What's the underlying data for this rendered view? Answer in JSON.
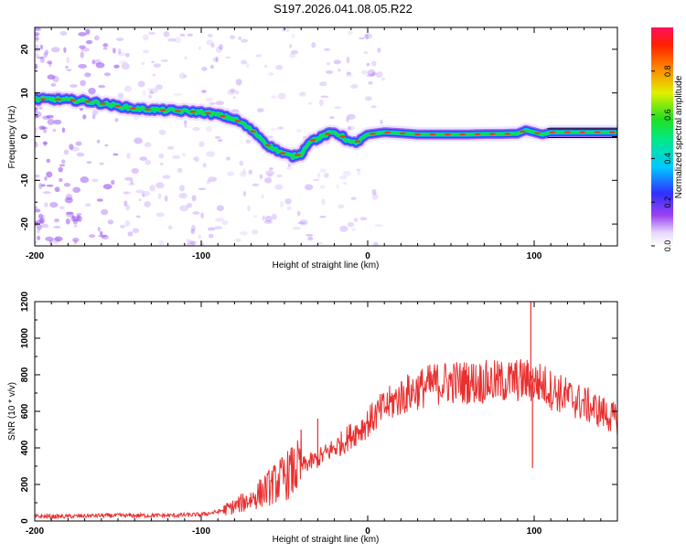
{
  "title": "S197.2026.041.08.05.R22",
  "colors": {
    "snr_line": "#e83030",
    "ridge_core": "#ff2a10",
    "ridge_mid": "#10e040",
    "ridge_outer": "#2040ff",
    "scatter": "#8a3cf0",
    "tail_line": "#000000"
  },
  "chart_data": [
    {
      "type": "heatmap",
      "name": "spectrogram",
      "xlabel": "Height of straight line (km)",
      "ylabel": "Frequency (Hz)",
      "xlim": [
        -200,
        150
      ],
      "ylim": [
        -25,
        25
      ],
      "xticks": [
        -200,
        -100,
        0,
        100
      ],
      "yticks": [
        -20,
        -10,
        0,
        10,
        20
      ],
      "ridge": {
        "x": [
          -200,
          -190,
          -180,
          -170,
          -160,
          -150,
          -140,
          -130,
          -120,
          -110,
          -100,
          -90,
          -80,
          -75,
          -70,
          -65,
          -60,
          -55,
          -50,
          -45,
          -40,
          -35,
          -30,
          -25,
          -20,
          -15,
          -10,
          -5,
          0,
          10,
          20,
          30,
          40,
          50,
          60,
          70,
          80,
          90,
          95,
          100,
          105,
          110,
          120,
          130,
          140,
          150
        ],
        "freq": [
          8.5,
          8.6,
          8.4,
          8.2,
          7.6,
          7.0,
          6.4,
          6.2,
          6.0,
          5.8,
          5.6,
          5.0,
          4.0,
          3.0,
          1.5,
          0.0,
          -2.0,
          -3.0,
          -4.0,
          -4.5,
          -4.0,
          -1.0,
          -0.5,
          0.5,
          1.0,
          0.0,
          -1.5,
          -1.0,
          0.5,
          1.0,
          0.8,
          0.5,
          0.5,
          0.5,
          0.5,
          0.6,
          0.6,
          0.7,
          1.5,
          1.0,
          0.5,
          1.0,
          1.0,
          1.0,
          1.0,
          1.0
        ]
      },
      "colorbar": {
        "label": "Normalized spectral amplitude",
        "range": [
          0,
          1
        ],
        "ticks": [
          0.0,
          0.2,
          0.4,
          0.6,
          0.8
        ]
      }
    },
    {
      "type": "line",
      "name": "snr",
      "xlabel": "Height of straight line (km)",
      "ylabel": "SNR (10 * v/v)",
      "xlim": [
        -200,
        150
      ],
      "ylim": [
        0,
        1200
      ],
      "xticks": [
        -200,
        -100,
        0,
        100
      ],
      "yticks": [
        0,
        200,
        400,
        600,
        800,
        1000,
        1200
      ],
      "envelope": {
        "x": [
          -200,
          -180,
          -160,
          -140,
          -120,
          -100,
          -90,
          -80,
          -70,
          -65,
          -60,
          -55,
          -50,
          -45,
          -40,
          -35,
          -30,
          -25,
          -20,
          -15,
          -10,
          -5,
          0,
          5,
          10,
          15,
          20,
          25,
          30,
          40,
          50,
          60,
          70,
          80,
          90,
          95,
          100,
          105,
          110,
          115,
          120,
          130,
          140,
          150
        ],
        "y": [
          25,
          25,
          30,
          30,
          30,
          35,
          50,
          80,
          120,
          150,
          180,
          210,
          240,
          270,
          300,
          320,
          340,
          370,
          400,
          430,
          470,
          500,
          540,
          580,
          620,
          650,
          680,
          700,
          720,
          750,
          760,
          760,
          760,
          760,
          770,
          770,
          760,
          750,
          720,
          700,
          680,
          640,
          600,
          550
        ]
      },
      "spikes": [
        {
          "x": -40,
          "y": 500
        },
        {
          "x": -30,
          "y": 560
        },
        {
          "x": 98,
          "y": 1200
        },
        {
          "x": 100,
          "y": 780
        },
        {
          "x": 99,
          "y": 290
        }
      ]
    }
  ]
}
